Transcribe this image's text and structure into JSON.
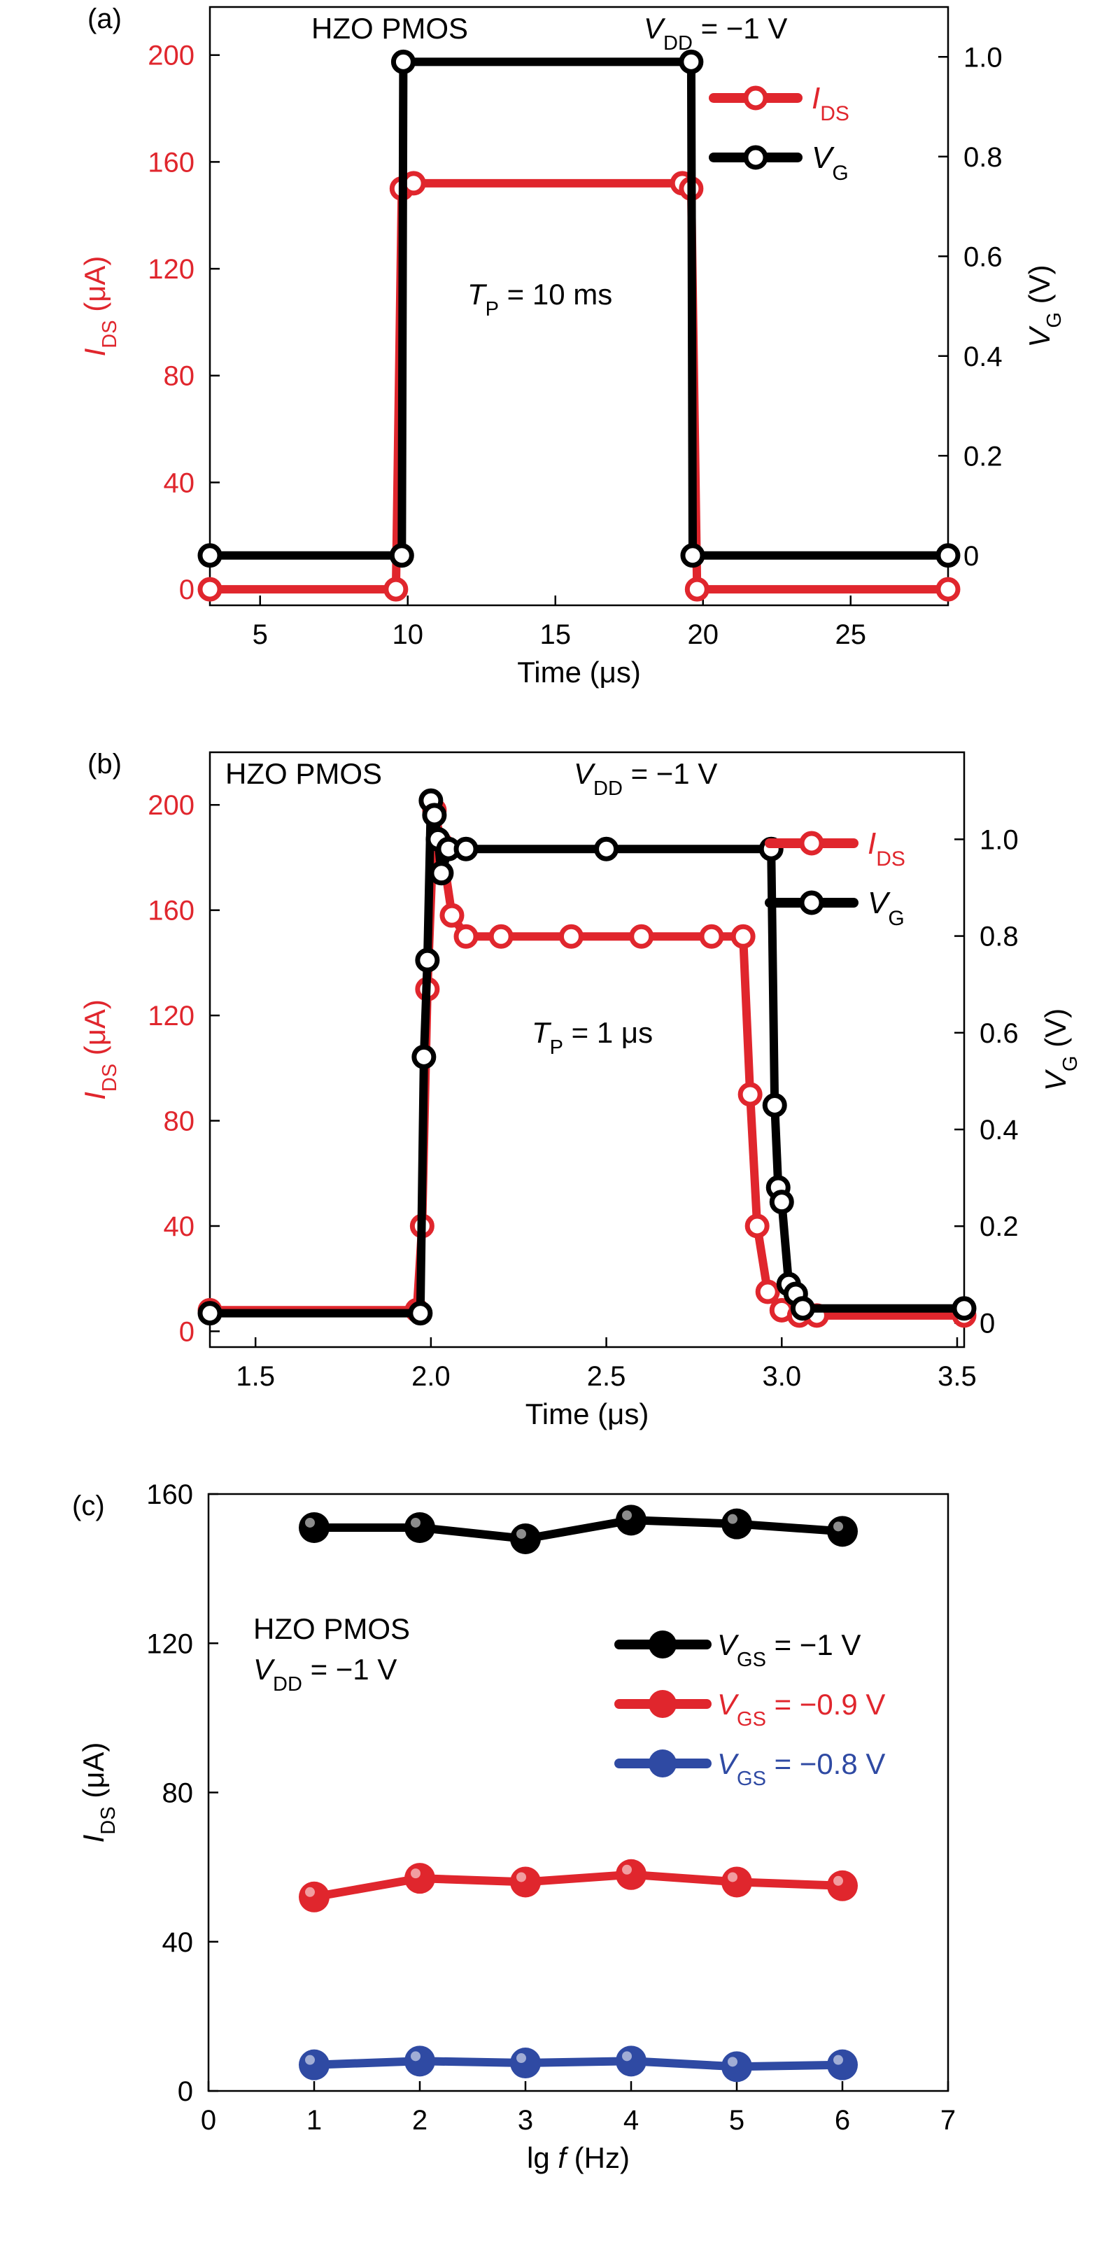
{
  "colors": {
    "red": "#e0262d",
    "black": "#000000",
    "blue": "#2f4aa3"
  },
  "chart_data": [
    {
      "id": "a",
      "type": "line",
      "panel_label": "(a)",
      "title": "HZO PMOS",
      "condition": {
        "sym": "V",
        "sub": "DD",
        "rest": " = −1 V"
      },
      "annotation": {
        "sym": "T",
        "sub": "P",
        "rest": " = 10 ms"
      },
      "xlabel": "Time (μs)",
      "ylabel_left": {
        "sym": "I",
        "sub": "DS",
        "unit": " (μA)"
      },
      "ylabel_right": {
        "sym": "V",
        "sub": "G",
        "unit": " (V)"
      },
      "xlim": [
        3.3,
        28.3
      ],
      "ylim_left": [
        -6,
        218
      ],
      "ylim_right": [
        -0.1,
        1.1
      ],
      "xticks": [
        5,
        10,
        15,
        20,
        25
      ],
      "yticks_left": [
        0,
        40,
        80,
        120,
        160,
        200
      ],
      "yticks_right": [
        0,
        0.2,
        0.4,
        0.6,
        0.8,
        1.0
      ],
      "ytick_labels_right": [
        "0",
        "0.2",
        "0.4",
        "0.6",
        "0.8",
        "1.0"
      ],
      "legend_position": "top-right",
      "series": [
        {
          "name": "IDS",
          "legend": {
            "sym": "I",
            "sub": "DS"
          },
          "axis": "left",
          "color": "red",
          "x": [
            3.3,
            9.6,
            9.8,
            10.2,
            19.3,
            19.6,
            19.8,
            28.3
          ],
          "y": [
            0,
            0,
            150,
            152,
            152,
            150,
            0,
            0
          ]
        },
        {
          "name": "VG",
          "legend": {
            "sym": "V",
            "sub": "G"
          },
          "axis": "right",
          "color": "black",
          "x": [
            3.3,
            9.8,
            9.85,
            19.6,
            19.65,
            28.3
          ],
          "y": [
            0,
            0,
            0.99,
            0.99,
            0,
            0
          ]
        }
      ]
    },
    {
      "id": "b",
      "type": "line",
      "panel_label": "(b)",
      "title": "HZO PMOS",
      "condition": {
        "sym": "V",
        "sub": "DD",
        "rest": " = −1 V"
      },
      "annotation": {
        "sym": "T",
        "sub": "P",
        "rest": " = 1 μs"
      },
      "xlabel": "Time (μs)",
      "ylabel_left": {
        "sym": "I",
        "sub": "DS",
        "unit": " (μA)"
      },
      "ylabel_right": {
        "sym": "V",
        "sub": "G",
        "unit": " (V)"
      },
      "xlim": [
        1.37,
        3.52
      ],
      "ylim_left": [
        -6,
        220
      ],
      "ylim_right": [
        -0.05,
        1.18
      ],
      "xticks": [
        1.5,
        2.0,
        2.5,
        3.0,
        3.5
      ],
      "xtick_labels": [
        "1.5",
        "2.0",
        "2.5",
        "3.0",
        "3.5"
      ],
      "yticks_left": [
        0,
        40,
        80,
        120,
        160,
        200
      ],
      "yticks_right": [
        0,
        0.2,
        0.4,
        0.6,
        0.8,
        1.0
      ],
      "ytick_labels_right": [
        "0",
        "0.2",
        "0.4",
        "0.6",
        "0.8",
        "1.0"
      ],
      "legend_position": "top-right",
      "series": [
        {
          "name": "IDS",
          "legend": {
            "sym": "I",
            "sub": "DS"
          },
          "axis": "left",
          "color": "red",
          "x": [
            1.37,
            1.96,
            1.975,
            1.99,
            2.01,
            2.03,
            2.06,
            2.1,
            2.2,
            2.4,
            2.6,
            2.8,
            2.89,
            2.91,
            2.93,
            2.96,
            3.0,
            3.05,
            3.1,
            3.52
          ],
          "y": [
            8,
            8,
            40,
            130,
            198,
            185,
            158,
            150,
            150,
            150,
            150,
            150,
            150,
            90,
            40,
            15,
            8,
            6,
            6,
            6
          ]
        },
        {
          "name": "VG",
          "legend": {
            "sym": "V",
            "sub": "G"
          },
          "axis": "right",
          "color": "black",
          "x": [
            1.37,
            1.97,
            1.98,
            1.99,
            2.0,
            2.01,
            2.02,
            2.03,
            2.05,
            2.1,
            2.5,
            2.97,
            2.98,
            2.99,
            3.0,
            3.02,
            3.04,
            3.06,
            3.52
          ],
          "y": [
            0.02,
            0.02,
            0.55,
            0.75,
            1.08,
            1.05,
            1.0,
            0.93,
            0.98,
            0.98,
            0.98,
            0.98,
            0.45,
            0.28,
            0.25,
            0.08,
            0.06,
            0.03,
            0.03
          ]
        }
      ]
    },
    {
      "id": "c",
      "type": "line",
      "panel_label": "(c)",
      "title": "HZO PMOS",
      "condition": {
        "sym": "V",
        "sub": "DD",
        "rest": " = −1 V"
      },
      "xlabel": {
        "pre": "lg ",
        "sym": "f",
        "post": " (Hz)"
      },
      "ylabel": {
        "sym": "I",
        "sub": "DS",
        "unit": " (μA)"
      },
      "xlim": [
        0,
        7
      ],
      "ylim": [
        0,
        160
      ],
      "xticks": [
        0,
        1,
        2,
        3,
        4,
        5,
        6,
        7
      ],
      "yticks": [
        0,
        40,
        80,
        120,
        160
      ],
      "legend_position": "top-right",
      "x": [
        1,
        2,
        3,
        4,
        5,
        6
      ],
      "series": [
        {
          "name": "VGS = −1 V",
          "legend": {
            "sym": "V",
            "sub": "GS",
            "rest": " = −1 V"
          },
          "color": "black",
          "values": [
            151,
            151,
            148,
            153,
            152,
            150
          ]
        },
        {
          "name": "VGS = −0.9 V",
          "legend": {
            "sym": "V",
            "sub": "GS",
            "rest": " = −0.9 V"
          },
          "color": "red",
          "values": [
            52,
            57,
            56,
            58,
            56,
            55
          ]
        },
        {
          "name": "VGS = −0.8 V",
          "legend": {
            "sym": "V",
            "sub": "GS",
            "rest": " = −0.8 V"
          },
          "color": "blue",
          "values": [
            7,
            8,
            7.5,
            8,
            6.5,
            7
          ]
        }
      ]
    }
  ]
}
